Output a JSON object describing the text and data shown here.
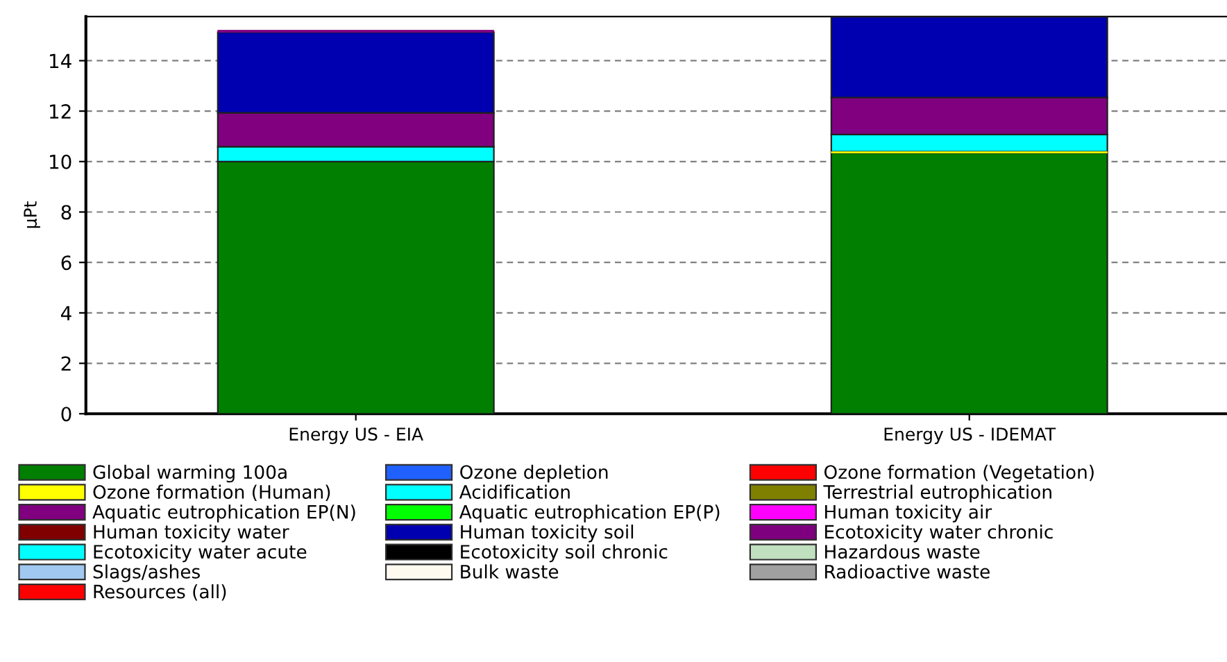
{
  "chart_data": {
    "type": "bar",
    "stacked": true,
    "ylabel": "µPt",
    "categories": [
      "Energy US - EIA",
      "Energy US - IDEMAT"
    ],
    "ylim": [
      0,
      15.75
    ],
    "yticks": [
      0,
      2,
      4,
      6,
      8,
      10,
      12,
      14
    ],
    "grid": "y",
    "legend": "bottom",
    "series": [
      {
        "name": "Global warming 100a",
        "color": "#007f00",
        "values": [
          10.0,
          10.34
        ]
      },
      {
        "name": "Ozone depletion",
        "color": "#2060ff",
        "values": [
          0,
          0
        ]
      },
      {
        "name": "Ozone formation (Vegetation)",
        "color": "#ff0000",
        "values": [
          0,
          0
        ]
      },
      {
        "name": "Ozone formation (Human)",
        "color": "#ffff00",
        "values": [
          null,
          0.05
        ]
      },
      {
        "name": "Acidification",
        "color": "#00ffff",
        "values": [
          0.59,
          0.68
        ]
      },
      {
        "name": "Terrestrial eutrophication",
        "color": "#808000",
        "values": [
          0,
          0
        ]
      },
      {
        "name": "Aquatic eutrophication EP(N)",
        "color": "#800080",
        "values": [
          1.34,
          1.47
        ]
      },
      {
        "name": "Aquatic eutrophication EP(P)",
        "color": "#00ff00",
        "values": [
          0,
          0
        ]
      },
      {
        "name": "Human toxicity air",
        "color": "#ff00ff",
        "values": [
          0,
          0
        ]
      },
      {
        "name": "Human toxicity water",
        "color": "#800000",
        "values": [
          0,
          0
        ]
      },
      {
        "name": "Human toxicity soil",
        "color": "#0000b0",
        "values": [
          3.2,
          3.2
        ]
      },
      {
        "name": "Ecotoxicity water chronic",
        "color": "#7f007f",
        "values": [
          0.08,
          0
        ]
      },
      {
        "name": "Ecotoxicity water acute",
        "color": "#00ffff",
        "values": [
          0,
          0
        ]
      },
      {
        "name": "Ecotoxicity soil chronic",
        "color": "#000000",
        "values": [
          0,
          0
        ]
      },
      {
        "name": "Hazardous waste",
        "color": "#c0e0c0",
        "values": [
          0,
          0
        ]
      },
      {
        "name": "Slags/ashes",
        "color": "#a0c8f0",
        "values": [
          0,
          0
        ]
      },
      {
        "name": "Bulk waste",
        "color": "#fffaf0",
        "values": [
          0,
          0
        ]
      },
      {
        "name": "Radioactive waste",
        "color": "#a0a0a0",
        "values": [
          0,
          0
        ]
      },
      {
        "name": "Resources (all)",
        "color": "#ff0000",
        "values": [
          0,
          0
        ]
      }
    ]
  }
}
